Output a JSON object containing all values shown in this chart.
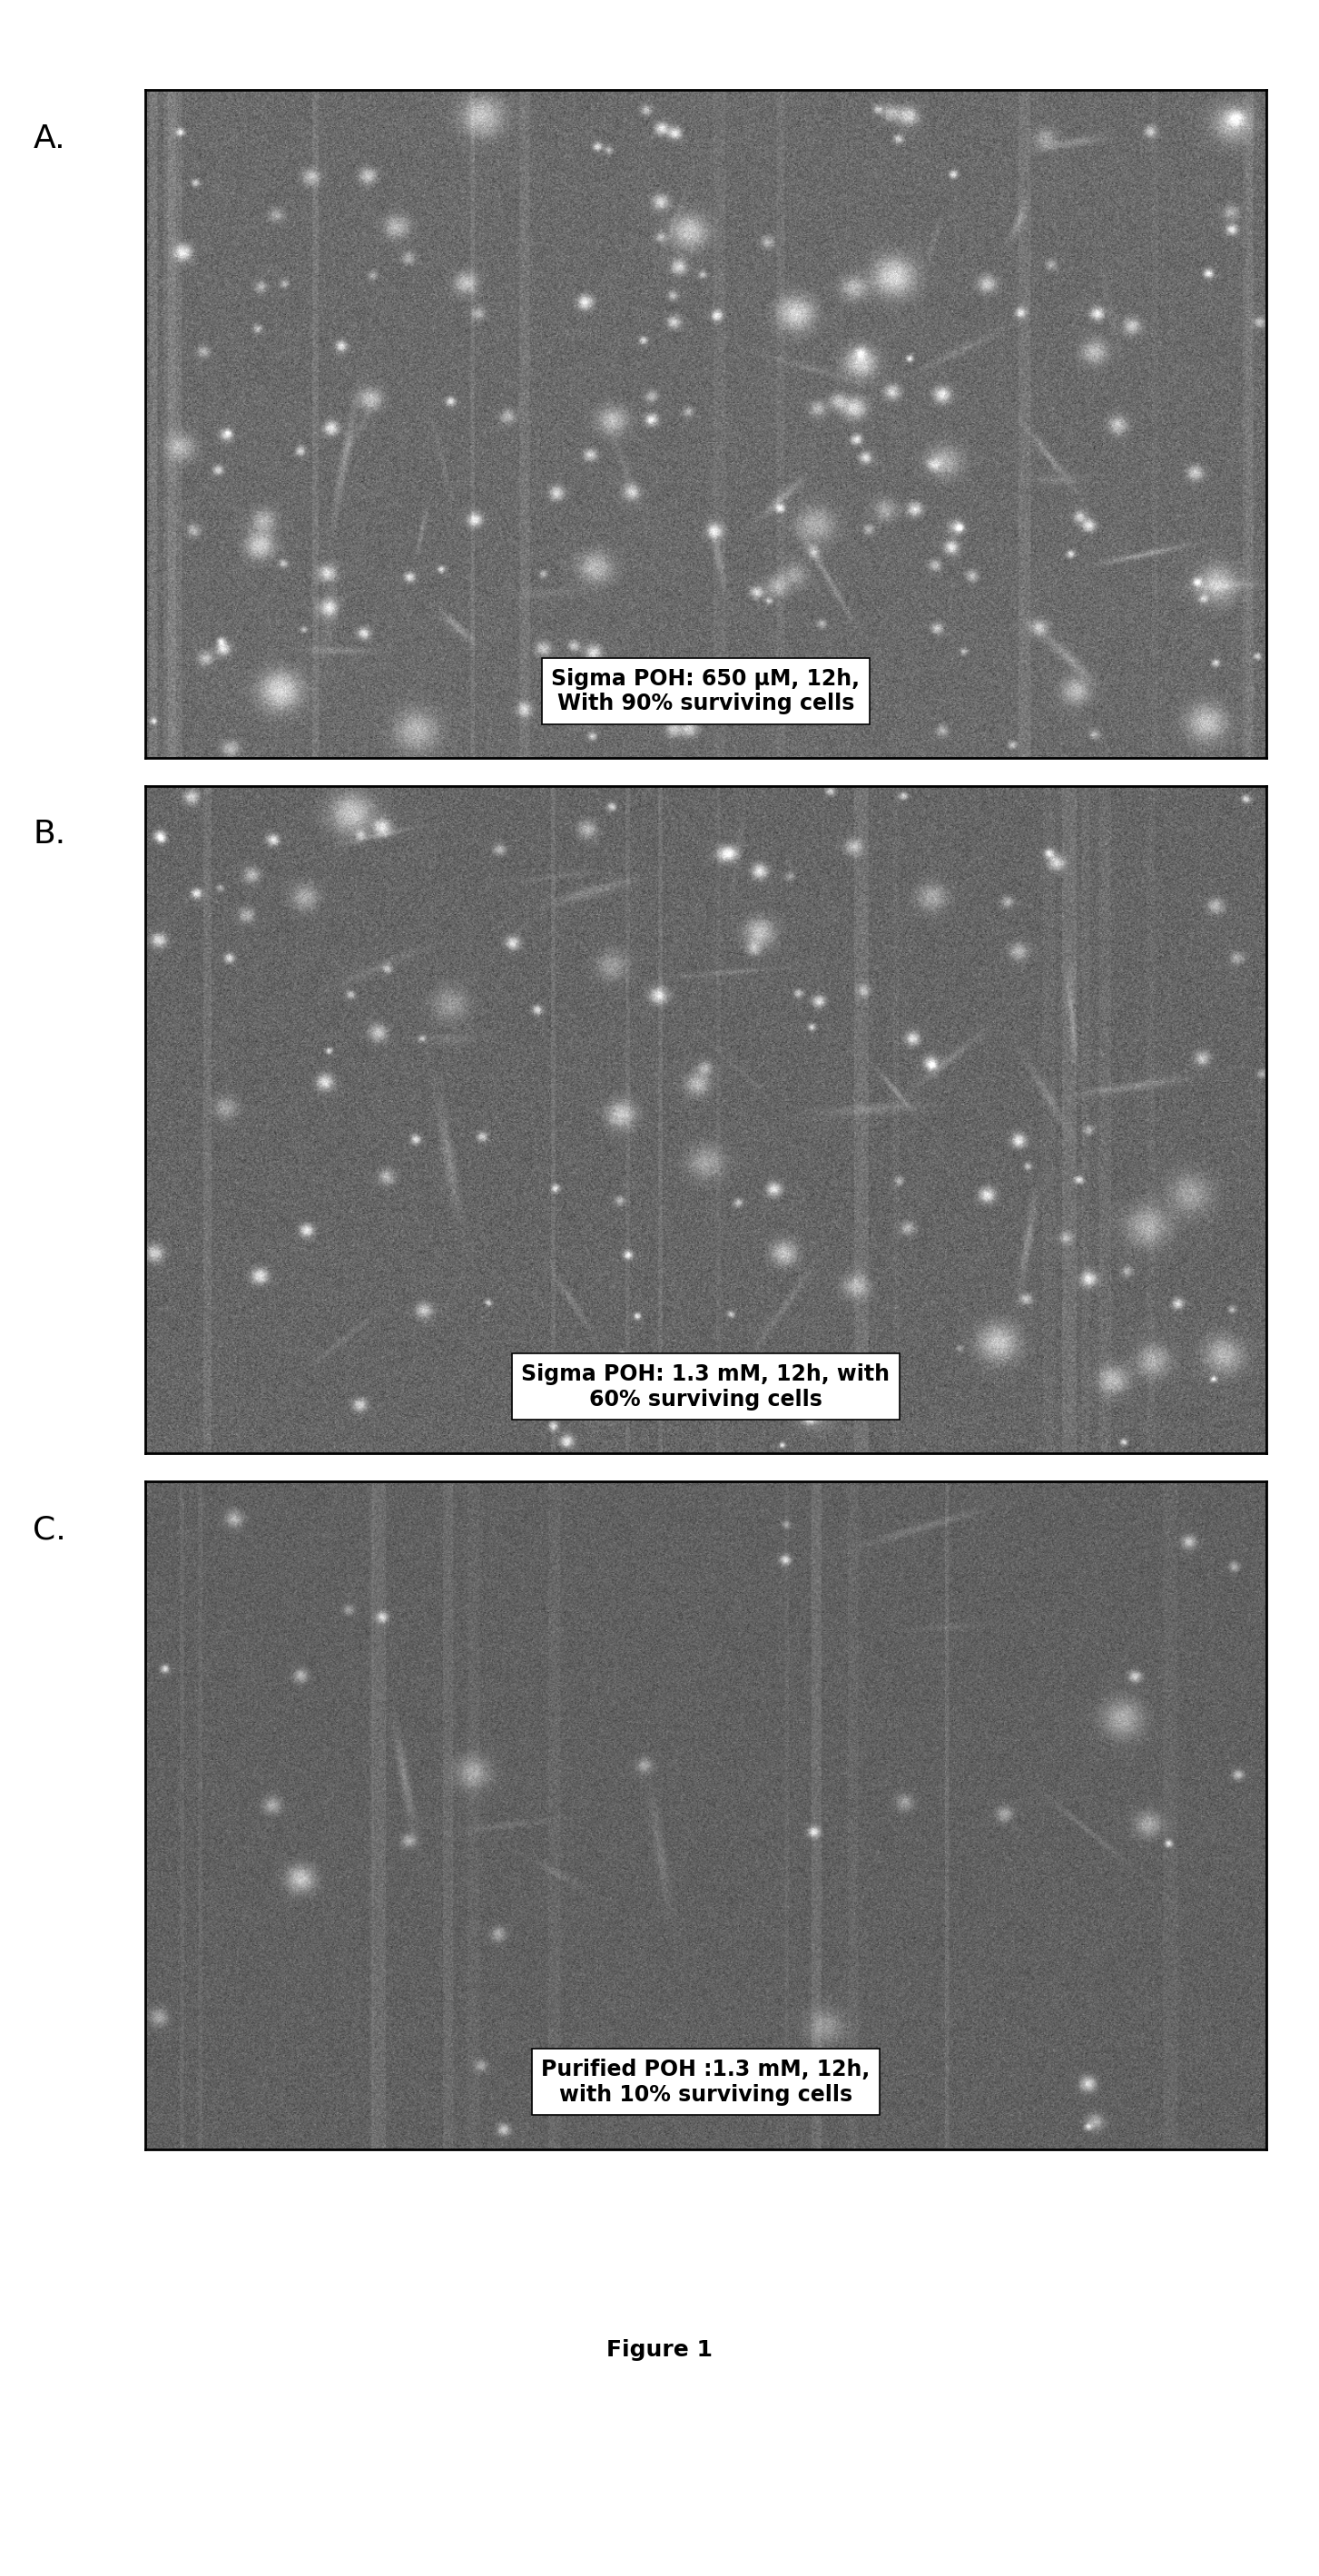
{
  "figure_title": "Figure 1",
  "panels": [
    {
      "label": "A.",
      "caption_line1": "Sigma POH: 650 μM, 12h,",
      "caption_line2": "With 90% surviving cells",
      "noise_seed": 42,
      "base_gray": 0.42,
      "noise_std": 0.06,
      "small_cell_count": 120,
      "large_cell_count": 30,
      "fiber_count": 25
    },
    {
      "label": "B.",
      "caption_line1": "Sigma POH: 1.3 mM, 12h, with",
      "caption_line2": "60% surviving cells",
      "noise_seed": 123,
      "base_gray": 0.4,
      "noise_std": 0.06,
      "small_cell_count": 90,
      "large_cell_count": 20,
      "fiber_count": 20
    },
    {
      "label": "C.",
      "caption_line1": "Purified POH :1.3 mM, 12h,",
      "caption_line2": "with 10% surviving cells",
      "noise_seed": 77,
      "base_gray": 0.38,
      "noise_std": 0.05,
      "small_cell_count": 25,
      "large_cell_count": 5,
      "fiber_count": 8
    }
  ],
  "background_color": "#ffffff",
  "label_fontsize": 26,
  "caption_fontsize": 17,
  "figure_title_fontsize": 18
}
